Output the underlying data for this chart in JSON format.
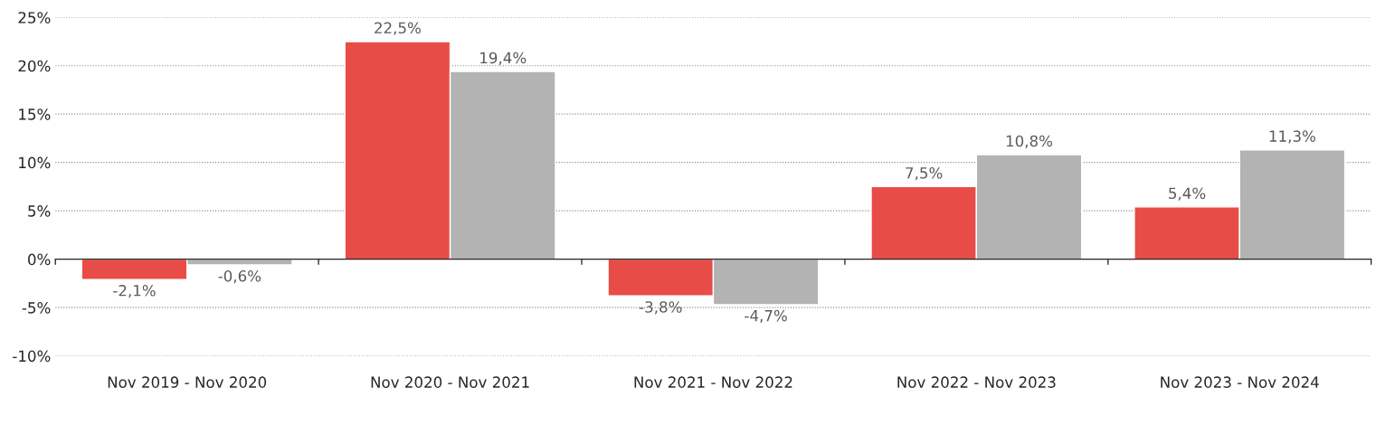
{
  "chart_data": {
    "type": "bar",
    "categories": [
      "Nov 2019 - Nov 2020",
      "Nov 2020 - Nov 2021",
      "Nov 2021 - Nov 2022",
      "Nov 2022 - Nov 2023",
      "Nov 2023 - Nov 2024"
    ],
    "series": [
      {
        "color": "#e84c47",
        "values": [
          -2.1,
          22.5,
          -3.8,
          7.5,
          5.4
        ],
        "value_labels": [
          "-2,1%",
          "22,5%",
          "-3,8%",
          "7,5%",
          "5,4%"
        ]
      },
      {
        "color": "#b3b3b3",
        "values": [
          -0.6,
          19.4,
          -4.7,
          10.8,
          11.3
        ],
        "value_labels": [
          "-0,6%",
          "19,4%",
          "-4,7%",
          "10,8%",
          "11,3%"
        ]
      }
    ],
    "ylim": [
      -10,
      25
    ],
    "yticks": [
      {
        "value": -10,
        "label": "-10%"
      },
      {
        "value": -5,
        "label": "-5%"
      },
      {
        "value": 0,
        "label": "0%"
      },
      {
        "value": 5,
        "label": "5%"
      },
      {
        "value": 10,
        "label": "10%"
      },
      {
        "value": 15,
        "label": "15%"
      },
      {
        "value": 20,
        "label": "20%"
      },
      {
        "value": 25,
        "label": "25%"
      }
    ],
    "grid": "y"
  }
}
